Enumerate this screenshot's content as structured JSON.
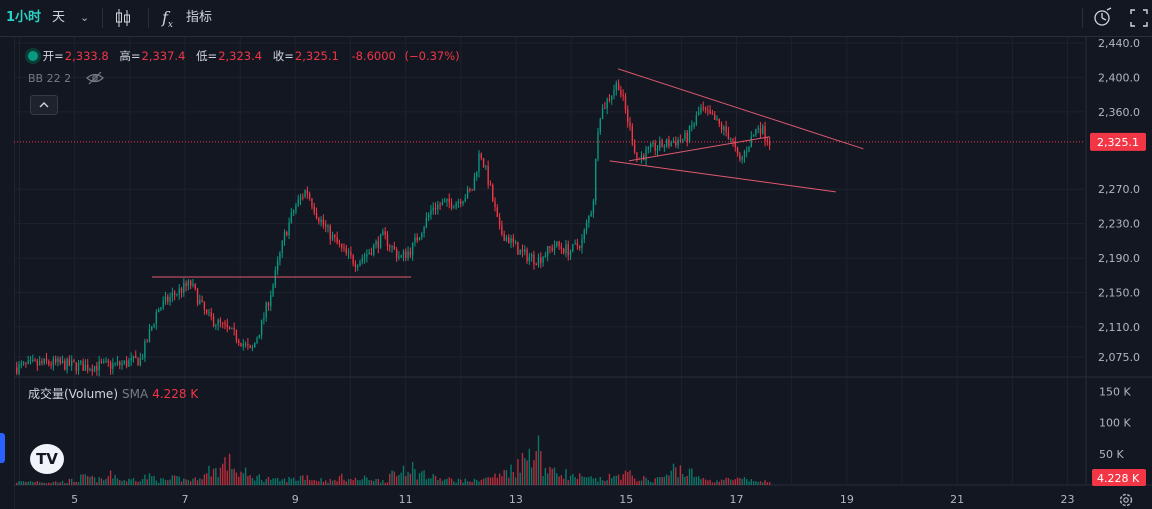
{
  "toolbar": {
    "interval": "1小时",
    "chart_style_label": "天",
    "indicators_label": "指标",
    "icons": [
      "chevron-down-icon",
      "candlestick-icon",
      "function-icon",
      "alert-icon",
      "fullscreen-icon"
    ]
  },
  "legend": {
    "open_label": "开=",
    "open_value": "2,333.8",
    "high_label": "高=",
    "high_value": "2,337.4",
    "low_label": "低=",
    "low_value": "2,323.4",
    "close_label": "收=",
    "close_value": "2,325.1",
    "change": "-8.6000",
    "change_pct": "(−0.37%)",
    "bb": "BB 22 2"
  },
  "volume_legend": {
    "title": "成交量(Volume)",
    "sma_label": "SMA",
    "value": "4.228 K"
  },
  "logo_text": "TV",
  "colors": {
    "background": "#131722",
    "up": "#089981",
    "down": "#f23645",
    "grid": "#1e222d",
    "interval_accent": "#2bd1c4",
    "trendline": "#e05a6e"
  },
  "chart_data": {
    "type": "candlestick",
    "price_axis_ticks": [
      "2,440.0",
      "2,400.0",
      "2,360.0",
      "2,270.0",
      "2,230.0",
      "2,190.0",
      "2,150.0",
      "2,110.0",
      "2,075.0"
    ],
    "price_tick_values": [
      2440,
      2400,
      2360,
      2270,
      2230,
      2190,
      2150,
      2110,
      2075
    ],
    "price_label": "2,325.1",
    "price_line_value": 2325.1,
    "volume_axis_ticks": [
      "150 K",
      "100 K",
      "50 K"
    ],
    "volume_tick_values": [
      150,
      100,
      50
    ],
    "volume_label": "4.228 K",
    "date_ticks": [
      "5",
      "7",
      "9",
      "11",
      "13",
      "15",
      "17",
      "19",
      "21",
      "23"
    ],
    "x_axis_day_range": [
      3.9,
      23.3
    ],
    "price_range": [
      2065,
      2445
    ],
    "volume_range_k": [
      0,
      160
    ],
    "trendlines": [
      {
        "from": [
          6.4,
          2168
        ],
        "to": [
          11.1,
          2168
        ]
      },
      {
        "from": [
          14.85,
          2410
        ],
        "to": [
          19.3,
          2317
        ]
      },
      {
        "from": [
          14.7,
          2303
        ],
        "to": [
          18.8,
          2267
        ]
      },
      {
        "from": [
          15.05,
          2303
        ],
        "to": [
          17.6,
          2331
        ]
      }
    ],
    "price_path": [
      [
        3.95,
        2063
      ],
      [
        4.5,
        2068
      ],
      [
        5.2,
        2064
      ],
      [
        5.8,
        2066
      ],
      [
        6.2,
        2072
      ],
      [
        6.5,
        2130
      ],
      [
        6.8,
        2148
      ],
      [
        7.1,
        2160
      ],
      [
        7.4,
        2122
      ],
      [
        7.7,
        2110
      ],
      [
        8.0,
        2095
      ],
      [
        8.2,
        2080
      ],
      [
        8.4,
        2115
      ],
      [
        8.6,
        2160
      ],
      [
        8.8,
        2215
      ],
      [
        9.0,
        2250
      ],
      [
        9.2,
        2270
      ],
      [
        9.4,
        2240
      ],
      [
        9.6,
        2220
      ],
      [
        9.9,
        2195
      ],
      [
        10.1,
        2185
      ],
      [
        10.3,
        2195
      ],
      [
        10.6,
        2215
      ],
      [
        10.9,
        2190
      ],
      [
        11.1,
        2200
      ],
      [
        11.3,
        2225
      ],
      [
        11.5,
        2250
      ],
      [
        11.9,
        2255
      ],
      [
        12.2,
        2268
      ],
      [
        12.35,
        2315
      ],
      [
        12.5,
        2280
      ],
      [
        12.7,
        2222
      ],
      [
        12.9,
        2210
      ],
      [
        13.1,
        2195
      ],
      [
        13.4,
        2188
      ],
      [
        13.7,
        2205
      ],
      [
        14.0,
        2198
      ],
      [
        14.2,
        2210
      ],
      [
        14.4,
        2255
      ],
      [
        14.5,
        2355
      ],
      [
        14.7,
        2378
      ],
      [
        14.85,
        2395
      ],
      [
        15.0,
        2358
      ],
      [
        15.2,
        2305
      ],
      [
        15.5,
        2318
      ],
      [
        15.8,
        2324
      ],
      [
        16.1,
        2330
      ],
      [
        16.35,
        2363
      ],
      [
        16.6,
        2350
      ],
      [
        16.9,
        2330
      ],
      [
        17.05,
        2300
      ],
      [
        17.2,
        2320
      ],
      [
        17.4,
        2345
      ],
      [
        17.6,
        2325
      ]
    ],
    "volume_k": [
      6,
      7,
      5,
      6,
      8,
      14,
      10,
      18,
      9,
      12,
      15,
      9,
      12,
      10,
      18,
      28,
      40,
      22,
      15,
      12,
      9,
      11,
      16,
      10,
      8,
      14,
      10,
      12,
      9,
      18,
      35,
      22,
      14,
      10,
      9,
      8,
      12,
      16,
      28,
      45,
      68,
      30,
      22,
      15,
      12,
      10,
      14,
      20,
      12,
      9,
      15,
      30,
      22,
      12,
      8,
      10,
      10,
      8,
      6
    ]
  }
}
